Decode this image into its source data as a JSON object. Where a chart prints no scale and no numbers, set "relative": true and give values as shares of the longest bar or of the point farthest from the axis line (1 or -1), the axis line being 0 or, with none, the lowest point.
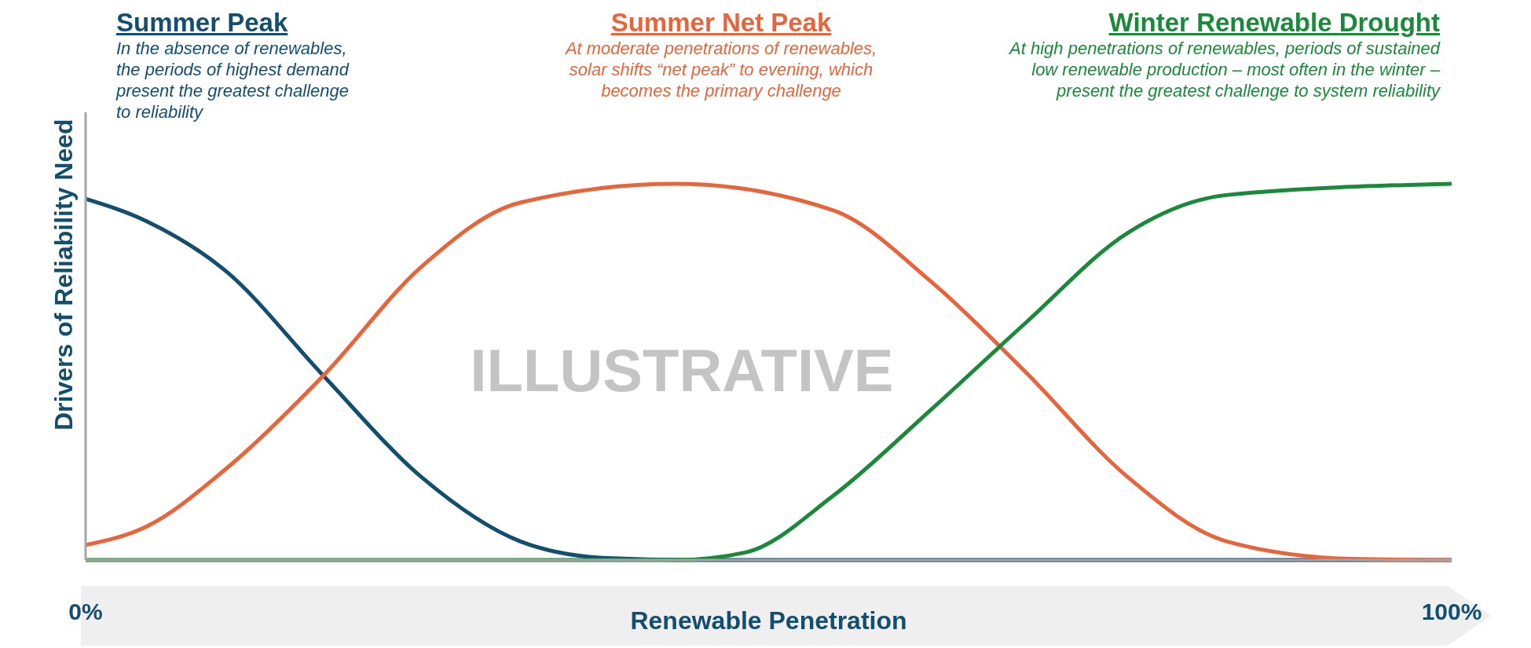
{
  "chart_data": {
    "type": "line",
    "relative": true,
    "marker": "none",
    "xlabel": "Renewable Penetration",
    "ylabel": "Drivers of Reliability Need",
    "xlim": [
      0,
      100
    ],
    "xticks": [
      {
        "value": 0,
        "label": "0%"
      },
      {
        "value": 100,
        "label": "100%"
      }
    ],
    "annotations": [
      "In the absence of renewables, the periods of highest demand present the greatest challenge to reliability",
      "At moderate penetrations of renewables, solar shifts “net peak” to evening, which becomes the primary challenge",
      "At high penetrations of renewables, periods of sustained low renewable production – most often in the winter – present the greatest challenge to system reliability",
      "ILLUSTRATIVE"
    ],
    "series": [
      {
        "name": "Summer Peak",
        "color": "#134e6f",
        "x": [
          0,
          4.5,
          10.2,
          17.4,
          24.6,
          31.8,
          38.2,
          44,
          100
        ],
        "values": [
          0.96,
          0.9,
          0.77,
          0.49,
          0.22,
          0.05,
          0.005,
          0,
          0
        ]
      },
      {
        "name": "Summer Net Peak",
        "color": "#e8643a",
        "x": [
          0,
          4.5,
          10.2,
          17.4,
          24.6,
          31.8,
          43.2,
          54.7,
          61.9,
          68.8,
          76.3,
          83.5,
          92.8,
          100
        ],
        "values": [
          0.04,
          0.09,
          0.24,
          0.49,
          0.78,
          0.95,
          1,
          0.93,
          0.74,
          0.5,
          0.22,
          0.05,
          0.003,
          0
        ]
      },
      {
        "name": "Winter Renewable Drought",
        "color": "#1a8a3a",
        "x": [
          0,
          43.2,
          48.3,
          54.7,
          61.9,
          68.8,
          76.3,
          83.5,
          100
        ],
        "values": [
          0,
          0,
          0.02,
          0.17,
          0.4,
          0.63,
          0.87,
          0.97,
          1
        ]
      }
    ]
  }
}
